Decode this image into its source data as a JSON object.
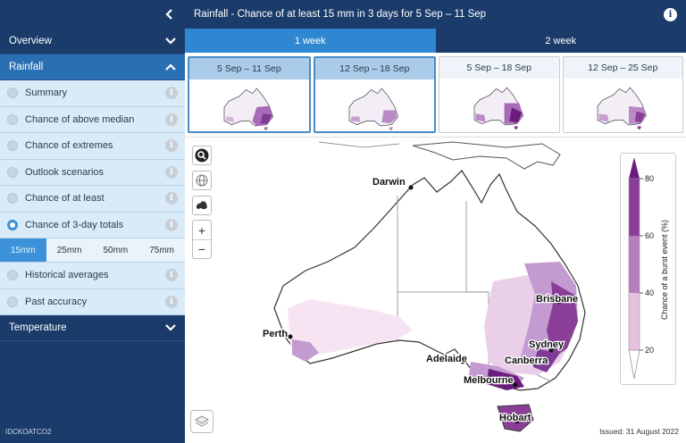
{
  "sidebar": {
    "sections": [
      {
        "label": "Overview"
      },
      {
        "label": "Rainfall"
      },
      {
        "label": "Temperature"
      }
    ],
    "rainfall_items": [
      {
        "label": "Summary"
      },
      {
        "label": "Chance of above median"
      },
      {
        "label": "Chance of extremes"
      },
      {
        "label": "Outlook scenarios"
      },
      {
        "label": "Chance of at least"
      },
      {
        "label": "Chance of 3-day totals"
      },
      {
        "label": "Historical averages"
      },
      {
        "label": "Past accuracy"
      }
    ],
    "threshold_options": [
      "15mm",
      "25mm",
      "50mm",
      "75mm"
    ],
    "selected_threshold": "15mm",
    "product_code": "IDCKOATCO2"
  },
  "header": {
    "title": "Rainfall - Chance of at least 15 mm in 3 days for 5 Sep – 11 Sep"
  },
  "tabs": [
    {
      "label": "1 week"
    },
    {
      "label": "2 week"
    }
  ],
  "periods": [
    {
      "label": "5 Sep – 11 Sep"
    },
    {
      "label": "12 Sep – 18 Sep"
    },
    {
      "label": "5 Sep – 18 Sep"
    },
    {
      "label": "12 Sep – 25 Sep"
    }
  ],
  "map": {
    "cities": {
      "darwin": "Darwin",
      "brisbane": "Brisbane",
      "perth": "Perth",
      "sydney": "Sydney",
      "adelaide": "Adelaide",
      "canberra": "Canberra",
      "melbourne": "Melbourne",
      "hobart": "Hobart"
    },
    "legend": {
      "title": "Chance of a burst event (%)",
      "ticks": [
        "80",
        "60",
        "40",
        "20"
      ],
      "colors": [
        "#f4dced",
        "#d9b0d5",
        "#b67ebd",
        "#8a3e98",
        "#6b1d7e"
      ]
    },
    "issued": "Issued: 31 August 2022"
  },
  "icons": {
    "collapse": "chevron-left-icon",
    "info": "info-icon",
    "search": "search-icon",
    "globe": "globe-icon",
    "australia": "australia-icon",
    "layers": "layers-icon"
  }
}
